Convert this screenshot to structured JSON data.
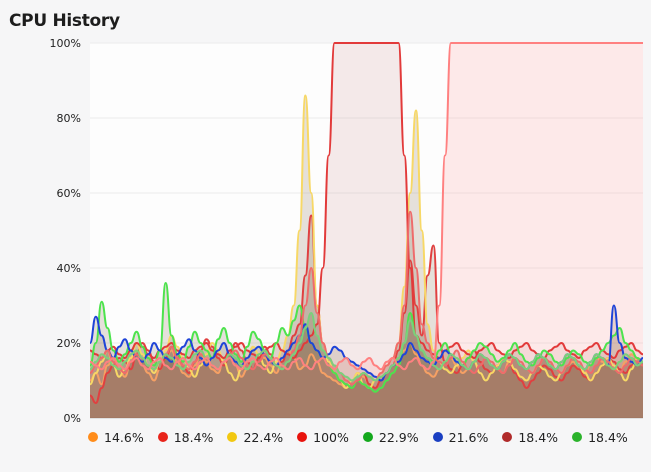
{
  "header": {
    "title": "CPU History"
  },
  "chart_data": {
    "type": "area",
    "title": "CPU History",
    "xlabel": "",
    "ylabel": "",
    "ylim": [
      0,
      100
    ],
    "y_ticks": [
      "0%",
      "20%",
      "40%",
      "60%",
      "80%",
      "100%"
    ],
    "grid": true,
    "legend_position": "bottom",
    "x_points": 96,
    "series": [
      {
        "legend": "14.6%",
        "color": "#ff8c1a",
        "stroke": "#f6a064",
        "values": [
          10,
          12,
          9,
          14,
          16,
          13,
          11,
          15,
          18,
          14,
          12,
          10,
          13,
          16,
          18,
          15,
          12,
          11,
          14,
          17,
          15,
          13,
          12,
          16,
          18,
          14,
          11,
          13,
          15,
          17,
          16,
          14,
          12,
          15,
          18,
          16,
          13,
          14,
          17,
          15,
          12,
          11,
          10,
          9,
          8,
          10,
          12,
          11,
          9,
          8,
          10,
          12,
          14,
          15,
          18,
          20,
          17,
          14,
          12,
          11,
          13,
          15,
          16,
          14,
          12,
          13,
          15,
          17,
          16,
          14,
          13,
          12,
          15,
          16,
          14,
          13,
          12,
          14,
          16,
          15,
          13,
          12,
          14,
          15,
          13,
          12,
          14,
          16,
          15,
          14,
          13,
          12,
          15,
          17,
          16,
          15
        ]
      },
      {
        "legend": "18.4%",
        "color": "#e8231a",
        "stroke": "#e04040",
        "values": [
          6,
          4,
          8,
          12,
          14,
          16,
          15,
          13,
          17,
          20,
          18,
          15,
          13,
          16,
          19,
          17,
          14,
          12,
          15,
          18,
          21,
          19,
          16,
          14,
          17,
          20,
          18,
          15,
          13,
          16,
          19,
          17,
          14,
          15,
          18,
          22,
          25,
          38,
          54,
          30,
          20,
          15,
          12,
          10,
          9,
          8,
          10,
          12,
          9,
          8,
          10,
          12,
          14,
          18,
          28,
          42,
          30,
          22,
          38,
          46,
          20,
          15,
          13,
          12,
          14,
          16,
          18,
          15,
          13,
          12,
          14,
          16,
          15,
          12,
          10,
          8,
          10,
          12,
          14,
          13,
          11,
          10,
          12,
          14,
          13,
          11,
          10,
          12,
          14,
          16,
          15,
          13,
          12,
          14,
          16,
          15
        ]
      },
      {
        "legend": "22.4%",
        "color": "#f2c811",
        "stroke": "#f7d866",
        "values": [
          9,
          12,
          15,
          18,
          14,
          11,
          13,
          16,
          20,
          17,
          14,
          12,
          15,
          18,
          22,
          19,
          16,
          13,
          11,
          14,
          17,
          20,
          18,
          15,
          12,
          10,
          13,
          16,
          19,
          17,
          14,
          12,
          15,
          18,
          22,
          30,
          50,
          86,
          60,
          30,
          20,
          15,
          12,
          10,
          8,
          10,
          12,
          9,
          8,
          10,
          12,
          14,
          16,
          20,
          35,
          60,
          82,
          50,
          25,
          18,
          15,
          13,
          12,
          14,
          16,
          18,
          15,
          12,
          10,
          12,
          14,
          16,
          15,
          13,
          11,
          10,
          12,
          14,
          13,
          11,
          10,
          12,
          14,
          16,
          14,
          12,
          10,
          12,
          14,
          16,
          14,
          12,
          10,
          13,
          16,
          15
        ]
      },
      {
        "legend": "100%",
        "color": "#e8120c",
        "stroke": "#e23a3a",
        "fill": "rgba(170,55,55,0.10)",
        "values": [
          18,
          17,
          16,
          18,
          19,
          17,
          16,
          18,
          20,
          19,
          17,
          16,
          18,
          19,
          20,
          18,
          17,
          16,
          18,
          19,
          20,
          18,
          17,
          16,
          18,
          19,
          20,
          18,
          17,
          16,
          18,
          19,
          20,
          18,
          17,
          16,
          18,
          20,
          22,
          25,
          40,
          70,
          100,
          100,
          100,
          100,
          100,
          100,
          100,
          100,
          100,
          100,
          100,
          100,
          70,
          40,
          22,
          20,
          18,
          17,
          16,
          18,
          19,
          20,
          18,
          17,
          16,
          18,
          19,
          20,
          18,
          17,
          16,
          18,
          19,
          20,
          18,
          17,
          16,
          18,
          19,
          20,
          18,
          17,
          16,
          18,
          19,
          20,
          18,
          17,
          16,
          18,
          19,
          20,
          18,
          17
        ]
      },
      {
        "legend": "22.9%",
        "color": "#13a81d",
        "stroke": "#4de34d",
        "values": [
          14,
          20,
          31,
          24,
          18,
          15,
          17,
          20,
          23,
          19,
          16,
          14,
          18,
          36,
          22,
          17,
          15,
          19,
          23,
          20,
          18,
          16,
          21,
          24,
          20,
          17,
          15,
          19,
          23,
          21,
          18,
          16,
          20,
          24,
          22,
          26,
          30,
          24,
          20,
          18,
          16,
          14,
          12,
          10,
          9,
          8,
          10,
          9,
          8,
          7,
          8,
          10,
          12,
          14,
          20,
          28,
          22,
          18,
          16,
          15,
          18,
          20,
          17,
          15,
          14,
          16,
          18,
          20,
          19,
          17,
          15,
          16,
          18,
          20,
          17,
          15,
          14,
          16,
          18,
          17,
          15,
          14,
          16,
          18,
          17,
          15,
          14,
          16,
          18,
          20,
          22,
          24,
          20,
          18,
          16,
          15
        ]
      },
      {
        "legend": "21.6%",
        "color": "#1a3fc2",
        "stroke": "#1f44d8",
        "values": [
          20,
          27,
          22,
          18,
          16,
          19,
          21,
          18,
          16,
          15,
          17,
          20,
          18,
          16,
          15,
          17,
          19,
          21,
          18,
          16,
          14,
          16,
          18,
          20,
          17,
          15,
          14,
          16,
          18,
          19,
          17,
          15,
          14,
          16,
          18,
          20,
          22,
          25,
          20,
          18,
          16,
          17,
          19,
          18,
          16,
          15,
          14,
          13,
          12,
          11,
          10,
          12,
          14,
          15,
          17,
          20,
          18,
          16,
          15,
          14,
          16,
          18,
          17,
          15,
          14,
          13,
          15,
          17,
          16,
          14,
          13,
          15,
          17,
          16,
          14,
          13,
          15,
          17,
          16,
          14,
          13,
          15,
          17,
          16,
          14,
          13,
          15,
          17,
          16,
          14,
          30,
          20,
          16,
          15,
          14,
          16
        ]
      },
      {
        "legend": "18.4%",
        "color": "#b02a2a",
        "stroke": "#ef6b6b",
        "values": [
          12,
          14,
          16,
          18,
          15,
          13,
          12,
          15,
          17,
          16,
          14,
          13,
          15,
          17,
          19,
          16,
          14,
          13,
          15,
          17,
          16,
          14,
          13,
          15,
          17,
          18,
          16,
          14,
          13,
          15,
          17,
          16,
          14,
          13,
          15,
          18,
          22,
          30,
          40,
          28,
          20,
          16,
          14,
          12,
          10,
          9,
          10,
          12,
          11,
          10,
          12,
          14,
          16,
          20,
          30,
          55,
          40,
          25,
          20,
          16,
          15,
          14,
          16,
          18,
          15,
          13,
          12,
          14,
          16,
          15,
          13,
          12,
          14,
          16,
          15,
          13,
          12,
          14,
          16,
          15,
          13,
          12,
          14,
          16,
          15,
          13,
          12,
          14,
          16,
          15,
          13,
          12,
          14,
          16,
          15,
          14
        ]
      },
      {
        "legend": "18.4%",
        "color": "#2bb32b",
        "stroke": "#7bd07b",
        "values": [
          13,
          15,
          17,
          16,
          14,
          13,
          15,
          17,
          18,
          16,
          14,
          13,
          15,
          17,
          16,
          14,
          13,
          15,
          17,
          18,
          16,
          14,
          13,
          15,
          17,
          16,
          14,
          13,
          15,
          17,
          18,
          16,
          14,
          13,
          15,
          17,
          20,
          24,
          28,
          22,
          18,
          16,
          14,
          12,
          11,
          10,
          11,
          12,
          11,
          10,
          11,
          12,
          14,
          16,
          20,
          26,
          22,
          18,
          16,
          14,
          13,
          15,
          17,
          16,
          14,
          13,
          15,
          17,
          16,
          14,
          13,
          15,
          17,
          16,
          14,
          13,
          15,
          17,
          16,
          14,
          13,
          15,
          17,
          16,
          14,
          13,
          15,
          17,
          16,
          14,
          13,
          15,
          17,
          16,
          14,
          15
        ]
      },
      {
        "legend": "",
        "color": "#ff7070",
        "stroke": "#ff8080",
        "fill": "rgba(255,120,120,0.15)",
        "values": [
          15,
          14,
          13,
          15,
          16,
          14,
          13,
          15,
          16,
          14,
          13,
          15,
          16,
          14,
          13,
          15,
          16,
          14,
          13,
          15,
          16,
          14,
          13,
          15,
          16,
          14,
          13,
          15,
          16,
          14,
          13,
          15,
          16,
          14,
          13,
          15,
          16,
          14,
          13,
          15,
          16,
          14,
          13,
          15,
          16,
          14,
          13,
          15,
          16,
          14,
          13,
          15,
          16,
          14,
          13,
          15,
          16,
          14,
          13,
          15,
          30,
          70,
          100,
          100,
          100,
          100,
          100,
          100,
          100,
          100,
          100,
          100,
          100,
          100,
          100,
          100,
          100,
          100,
          100,
          100,
          100,
          100,
          100,
          100,
          100,
          100,
          100,
          100,
          100,
          100,
          100,
          100,
          100,
          100,
          100,
          100
        ]
      }
    ]
  }
}
